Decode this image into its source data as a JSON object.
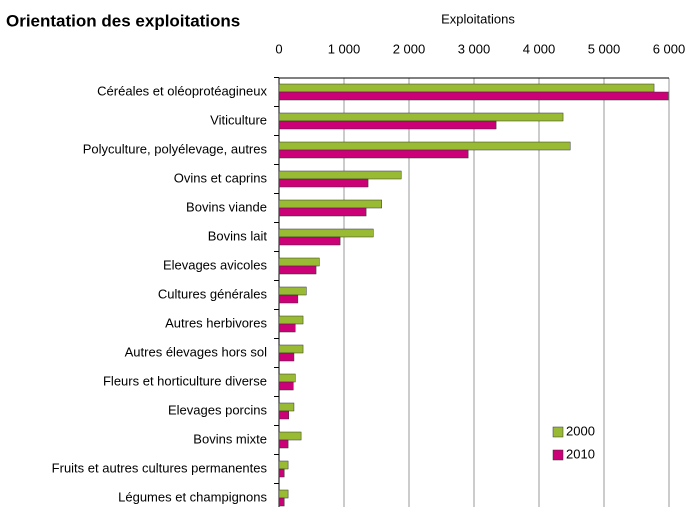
{
  "chart_data": {
    "type": "barh",
    "title": "Orientation des exploitations",
    "x_label": "Exploitations",
    "categories": [
      "Céréales et oléoprotéagineux",
      "Viticulture",
      "Polyculture, polyélevage, autres",
      "Ovins et caprins",
      "Bovins viande",
      "Bovins lait",
      "Elevages avicoles",
      "Cultures générales",
      "Autres herbivores",
      "Autres élevages hors sol",
      "Fleurs et horticulture diverse",
      "Elevages porcins",
      "Bovins mixte",
      "Fruits et autres cultures permanentes",
      "Légumes et champignons"
    ],
    "series": [
      {
        "name": "2000",
        "color": "#99bb33",
        "values": [
          5770,
          4370,
          4480,
          1880,
          1580,
          1450,
          620,
          420,
          370,
          370,
          250,
          230,
          340,
          140,
          140
        ]
      },
      {
        "name": "2010",
        "color": "#cc0077",
        "values": [
          5990,
          3340,
          2910,
          1370,
          1340,
          940,
          570,
          290,
          250,
          230,
          220,
          150,
          140,
          80,
          80
        ]
      }
    ],
    "xlim": [
      0,
      6000
    ],
    "xticks": [
      0,
      {
        "value": 1000,
        "label": "1 000"
      },
      {
        "value": 2000,
        "label": "2 000"
      },
      {
        "value": 3000,
        "label": "3 000"
      },
      {
        "value": 4000,
        "label": "4 000"
      },
      {
        "value": 5000,
        "label": "5 000"
      },
      {
        "value": 6000,
        "label": "6 000"
      }
    ],
    "grid": true,
    "legend": "lower right"
  }
}
